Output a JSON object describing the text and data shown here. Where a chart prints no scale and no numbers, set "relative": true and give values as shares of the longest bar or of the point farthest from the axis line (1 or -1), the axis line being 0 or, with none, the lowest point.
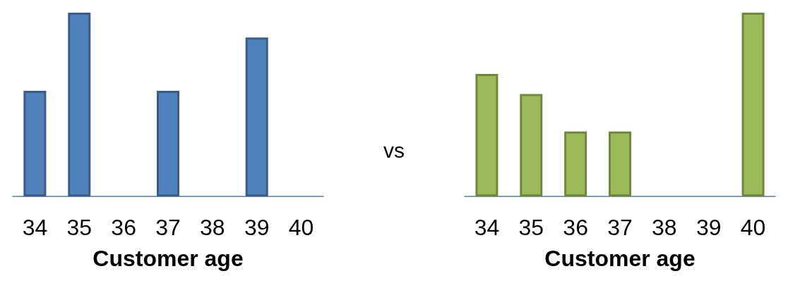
{
  "chart_data": [
    {
      "type": "bar",
      "relative": true,
      "xlabel": "Customer age",
      "categories": [
        "34",
        "35",
        "36",
        "37",
        "38",
        "39",
        "40"
      ],
      "values": [
        0.575,
        1,
        null,
        0.575,
        null,
        0.865,
        null
      ],
      "color": "#4f81bd",
      "grid": false,
      "annotations": [
        "vs"
      ]
    },
    {
      "type": "bar",
      "relative": true,
      "xlabel": "Customer age",
      "categories": [
        "34",
        "35",
        "36",
        "37",
        "38",
        "39",
        "40"
      ],
      "values": [
        0.667,
        0.557,
        0.353,
        0.353,
        null,
        null,
        1
      ],
      "color": "#9bbb59",
      "grid": false
    }
  ]
}
